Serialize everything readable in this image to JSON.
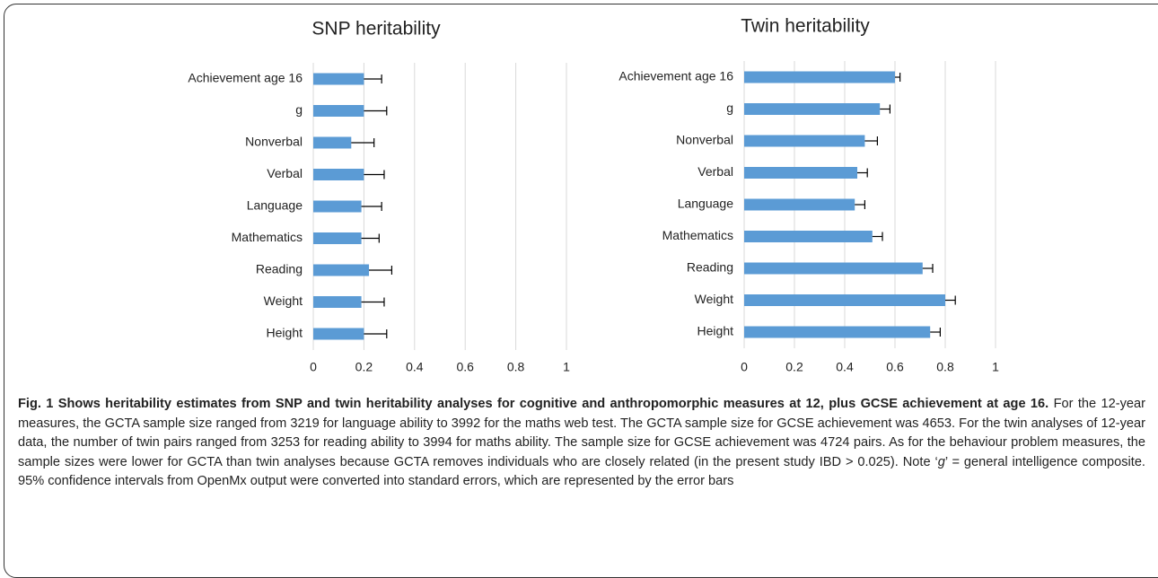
{
  "chart_data": [
    {
      "type": "bar",
      "orientation": "horizontal",
      "title": "SNP heritability",
      "categories": [
        "Achievement age 16",
        "g",
        "Nonverbal",
        "Verbal",
        "Language",
        "Mathematics",
        "Reading",
        "Weight",
        "Height"
      ],
      "values": [
        0.2,
        0.2,
        0.15,
        0.2,
        0.19,
        0.19,
        0.22,
        0.19,
        0.2
      ],
      "errors": [
        0.07,
        0.09,
        0.09,
        0.08,
        0.08,
        0.07,
        0.09,
        0.09,
        0.09
      ],
      "color": "#5b9bd5",
      "xlim": [
        0,
        1
      ],
      "xticks": [
        0,
        0.2,
        0.4,
        0.6,
        0.8,
        1
      ],
      "grid": true
    },
    {
      "type": "bar",
      "orientation": "horizontal",
      "title": "Twin  heritability",
      "categories": [
        "Achievement age 16",
        "g",
        "Nonverbal",
        "Verbal",
        "Language",
        "Mathematics",
        "Reading",
        "Weight",
        "Height"
      ],
      "values": [
        0.6,
        0.54,
        0.48,
        0.45,
        0.44,
        0.51,
        0.71,
        0.8,
        0.74
      ],
      "errors": [
        0.02,
        0.04,
        0.05,
        0.04,
        0.04,
        0.04,
        0.04,
        0.04,
        0.04
      ],
      "color": "#5b9bd5",
      "xlim": [
        0,
        1
      ],
      "xticks": [
        0,
        0.2,
        0.4,
        0.6,
        0.8,
        1
      ],
      "grid": true
    }
  ],
  "caption": {
    "bold": "Fig. 1 Shows heritability estimates from SNP and twin heritability analyses for cognitive and anthropomorphic measures at 12, plus GCSE achievement at age 16.",
    "text_before": "For the 12-year measures, the GCTA sample size ranged from 3219 for language ability to 3992 for the maths web test. The GCTA sample size for GCSE achievement was 4653. For the twin analyses of 12-year data, the number of twin pairs ranged from 3253 for reading ability to 3994 for maths ability. The sample size for GCSE achievement was 4724 pairs. As for the behaviour problem measures, the sample sizes were lower for GCTA than twin analyses because GCTA removes individuals who are closely related (in the present study IBD > 0.025). Note ‘",
    "italic": "g",
    "text_after": "’ = general intelligence composite. 95% confidence intervals from OpenMx output were converted into standard errors, which are represented by the error bars"
  }
}
